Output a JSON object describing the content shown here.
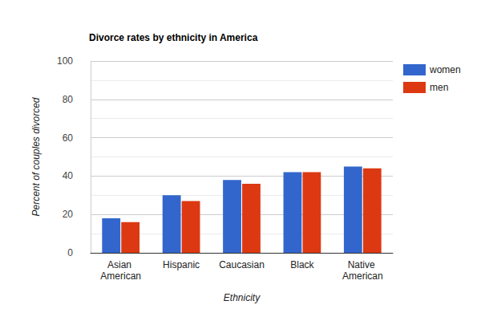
{
  "chart_data": {
    "type": "bar",
    "title": "Divorce rates by ethnicity in America",
    "x_label": "Ethnicity",
    "y_label": "Percent of couples divorced",
    "categories": [
      "Asian American",
      "Hispanic",
      "Caucasian",
      "Black",
      "Native American"
    ],
    "series": [
      {
        "name": "women",
        "color": "#3366cc",
        "values": [
          18,
          30,
          38,
          42,
          45
        ]
      },
      {
        "name": "men",
        "color": "#dc3912",
        "values": [
          16,
          27,
          36,
          42,
          44
        ]
      }
    ],
    "ylim": [
      0,
      100
    ],
    "yticks": [
      0,
      20,
      40,
      60,
      80,
      100
    ],
    "grid": true,
    "legend": "right"
  }
}
